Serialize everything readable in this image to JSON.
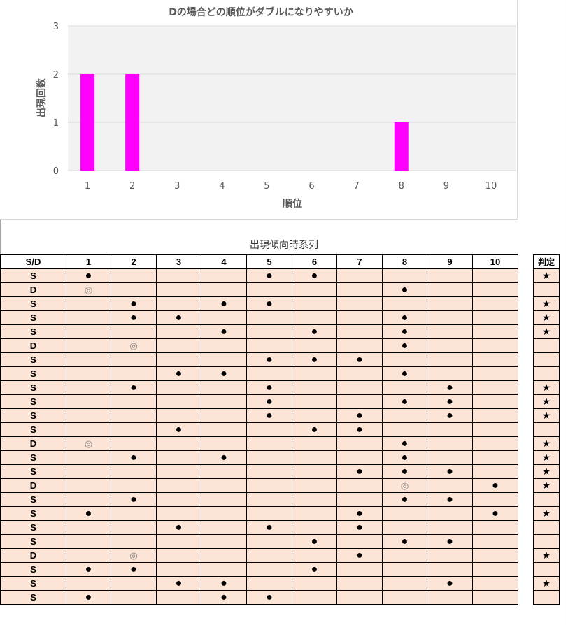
{
  "chart_data": {
    "type": "bar",
    "title": "Dの場合どの順位がダブルになりやすいか",
    "xlabel": "順位",
    "ylabel": "出現回数",
    "categories": [
      "1",
      "2",
      "3",
      "4",
      "5",
      "6",
      "7",
      "8",
      "9",
      "10"
    ],
    "values": [
      2,
      2,
      0,
      0,
      0,
      0,
      0,
      1,
      0,
      0
    ],
    "ylim": [
      0,
      3
    ],
    "yticks": [
      "0",
      "1",
      "2",
      "3"
    ],
    "bar_color": "#ff00ff",
    "plot_bg": "#f2f2f2",
    "grid": true
  },
  "table": {
    "title": "出現傾向時系列",
    "headers": [
      "S/D",
      "1",
      "2",
      "3",
      "4",
      "5",
      "6",
      "7",
      "8",
      "9",
      "10"
    ],
    "judge_header": "判定",
    "dot_symbol": "●",
    "double_symbol": "◎",
    "star_symbol": "★",
    "rows": [
      {
        "sd": "S",
        "marks": {
          "1": "dot",
          "5": "dot",
          "6": "dot"
        },
        "star": true
      },
      {
        "sd": "D",
        "marks": {
          "1": "double",
          "8": "dot"
        },
        "star": false
      },
      {
        "sd": "S",
        "marks": {
          "2": "dot",
          "4": "dot",
          "5": "dot"
        },
        "star": true
      },
      {
        "sd": "S",
        "marks": {
          "2": "dot",
          "3": "dot",
          "8": "dot"
        },
        "star": true
      },
      {
        "sd": "S",
        "marks": {
          "4": "dot",
          "6": "dot",
          "8": "dot"
        },
        "star": true
      },
      {
        "sd": "D",
        "marks": {
          "2": "double",
          "8": "dot"
        },
        "star": false
      },
      {
        "sd": "S",
        "marks": {
          "5": "dot",
          "6": "dot",
          "7": "dot"
        },
        "star": false
      },
      {
        "sd": "S",
        "marks": {
          "3": "dot",
          "4": "dot",
          "8": "dot"
        },
        "star": false
      },
      {
        "sd": "S",
        "marks": {
          "2": "dot",
          "5": "dot",
          "9": "dot"
        },
        "star": true
      },
      {
        "sd": "S",
        "marks": {
          "5": "dot",
          "8": "dot",
          "9": "dot"
        },
        "star": true
      },
      {
        "sd": "S",
        "marks": {
          "5": "dot",
          "7": "dot",
          "9": "dot"
        },
        "star": true
      },
      {
        "sd": "S",
        "marks": {
          "3": "dot",
          "6": "dot",
          "7": "dot"
        },
        "star": false
      },
      {
        "sd": "D",
        "marks": {
          "1": "double",
          "8": "dot"
        },
        "star": true
      },
      {
        "sd": "S",
        "marks": {
          "2": "dot",
          "4": "dot",
          "8": "dot"
        },
        "star": true
      },
      {
        "sd": "S",
        "marks": {
          "7": "dot",
          "8": "dot",
          "9": "dot"
        },
        "star": true
      },
      {
        "sd": "D",
        "marks": {
          "8": "double",
          "10": "dot"
        },
        "star": true
      },
      {
        "sd": "S",
        "marks": {
          "2": "dot",
          "8": "dot",
          "9": "dot"
        },
        "star": false
      },
      {
        "sd": "S",
        "marks": {
          "1": "dot",
          "7": "dot",
          "10": "dot"
        },
        "star": true
      },
      {
        "sd": "S",
        "marks": {
          "3": "dot",
          "5": "dot",
          "7": "dot"
        },
        "star": false
      },
      {
        "sd": "S",
        "marks": {
          "6": "dot",
          "8": "dot",
          "9": "dot"
        },
        "star": false
      },
      {
        "sd": "D",
        "marks": {
          "2": "double",
          "7": "dot"
        },
        "star": true
      },
      {
        "sd": "S",
        "marks": {
          "1": "dot",
          "2": "dot",
          "6": "dot"
        },
        "star": false
      },
      {
        "sd": "S",
        "marks": {
          "3": "dot",
          "4": "dot",
          "9": "dot"
        },
        "star": true
      },
      {
        "sd": "S",
        "marks": {
          "1": "dot",
          "4": "dot",
          "5": "dot"
        },
        "star": false
      }
    ]
  }
}
